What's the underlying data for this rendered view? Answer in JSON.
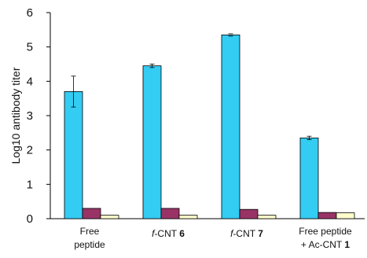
{
  "chart_data": {
    "type": "bar",
    "categories": [
      {
        "lines": [
          [
            {
              "text": "Free"
            }
          ],
          [
            {
              "text": "peptide"
            }
          ]
        ]
      },
      {
        "lines": [
          [
            {
              "text": "f",
              "italic": true
            },
            {
              "text": "-CNT "
            },
            {
              "text": "6",
              "bold": true
            }
          ]
        ]
      },
      {
        "lines": [
          [
            {
              "text": "f",
              "italic": true
            },
            {
              "text": "-CNT "
            },
            {
              "text": "7",
              "bold": true
            }
          ]
        ]
      },
      {
        "lines": [
          [
            {
              "text": "Free peptide"
            }
          ],
          [
            {
              "text": "+ Ac-CNT "
            },
            {
              "text": "1",
              "bold": true
            }
          ]
        ]
      }
    ],
    "series": [
      {
        "values": [
          3.7,
          4.45,
          5.35,
          2.35
        ],
        "errors": [
          0.45,
          0.05,
          0.02,
          0.05
        ],
        "color": "#33CCF2"
      },
      {
        "values": [
          0.3,
          0.3,
          0.27,
          0.18
        ],
        "errors": [
          0,
          0,
          0,
          0
        ],
        "color": "#993366"
      },
      {
        "values": [
          0.1,
          0.1,
          0.1,
          0.17
        ],
        "errors": [
          0,
          0,
          0,
          0
        ],
        "color": "#FFFFCC"
      }
    ],
    "ylabel": "Log10 antibody titer",
    "ylim": [
      0,
      6
    ],
    "yticks": [
      0,
      1,
      2,
      3,
      4,
      5,
      6
    ],
    "grid": false
  }
}
